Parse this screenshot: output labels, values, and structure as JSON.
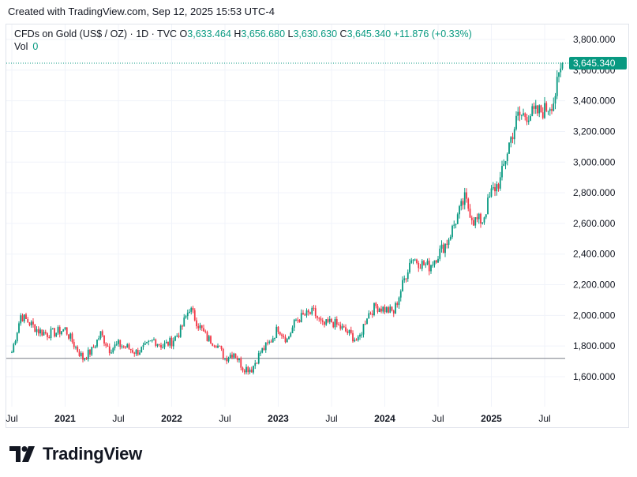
{
  "caption": "Created with TradingView.com, Sep 12, 2025 15:53 UTC-4",
  "legend": {
    "symbol": "CFDs on Gold (US$ / OZ) · 1D · TVC",
    "open_label": "O",
    "open": "3,633.464",
    "high_label": "H",
    "high": "3,656.680",
    "low_label": "L",
    "low": "3,630.630",
    "close_label": "C",
    "close": "3,645.340",
    "change": "+11.876 (+0.33%)",
    "vol_label": "Vol",
    "vol": "0"
  },
  "last_price_label": "3,645.340",
  "logo_text": "TradingView",
  "colors": {
    "up": "#089981",
    "down": "#f23645",
    "grid": "#f0f3fa",
    "line": "#089981"
  },
  "chart_data": {
    "type": "candlestick",
    "y_ticks": [
      "1,600.000",
      "1,800.000",
      "2,000.000",
      "2,200.000",
      "2,400.000",
      "2,600.000",
      "2,800.000",
      "3,000.000",
      "3,200.000",
      "3,400.000",
      "3,600.000",
      "3,800.000"
    ],
    "y_values": [
      1600,
      1800,
      2000,
      2200,
      2400,
      2600,
      2800,
      3000,
      3200,
      3400,
      3600,
      3800
    ],
    "x_ticks": [
      {
        "label": "Jul",
        "date": "2020-07",
        "bold": false
      },
      {
        "label": "2021",
        "date": "2021-01",
        "bold": true
      },
      {
        "label": "Jul",
        "date": "2021-07",
        "bold": false
      },
      {
        "label": "2022",
        "date": "2022-01",
        "bold": true
      },
      {
        "label": "Jul",
        "date": "2022-07",
        "bold": false
      },
      {
        "label": "2023",
        "date": "2023-01",
        "bold": true
      },
      {
        "label": "Jul",
        "date": "2023-07",
        "bold": false
      },
      {
        "label": "2024",
        "date": "2024-01",
        "bold": true
      },
      {
        "label": "Jul",
        "date": "2024-07",
        "bold": false
      },
      {
        "label": "2025",
        "date": "2025-01",
        "bold": true
      },
      {
        "label": "Jul",
        "date": "2025-07",
        "bold": false
      }
    ],
    "reference_line": 1720,
    "last_price": 3645.34,
    "closes": [
      {
        "date": "2020-07",
        "close": 1760
      },
      {
        "date": "2020-08",
        "close": 2000
      },
      {
        "date": "2020-09",
        "close": 1950
      },
      {
        "date": "2020-10",
        "close": 1900
      },
      {
        "date": "2020-11",
        "close": 1880
      },
      {
        "date": "2020-12",
        "close": 1890
      },
      {
        "date": "2021-01",
        "close": 1910
      },
      {
        "date": "2021-02",
        "close": 1810
      },
      {
        "date": "2021-03",
        "close": 1720
      },
      {
        "date": "2021-04",
        "close": 1770
      },
      {
        "date": "2021-05",
        "close": 1880
      },
      {
        "date": "2021-06",
        "close": 1780
      },
      {
        "date": "2021-07",
        "close": 1810
      },
      {
        "date": "2021-08",
        "close": 1790
      },
      {
        "date": "2021-09",
        "close": 1760
      },
      {
        "date": "2021-10",
        "close": 1790
      },
      {
        "date": "2021-11",
        "close": 1840
      },
      {
        "date": "2021-12",
        "close": 1800
      },
      {
        "date": "2022-01",
        "close": 1830
      },
      {
        "date": "2022-02",
        "close": 1900
      },
      {
        "date": "2022-03",
        "close": 2050
      },
      {
        "date": "2022-04",
        "close": 1940
      },
      {
        "date": "2022-05",
        "close": 1850
      },
      {
        "date": "2022-06",
        "close": 1820
      },
      {
        "date": "2022-07",
        "close": 1720
      },
      {
        "date": "2022-08",
        "close": 1760
      },
      {
        "date": "2022-09",
        "close": 1660
      },
      {
        "date": "2022-10",
        "close": 1650
      },
      {
        "date": "2022-11",
        "close": 1760
      },
      {
        "date": "2022-12",
        "close": 1820
      },
      {
        "date": "2023-01",
        "close": 1920
      },
      {
        "date": "2023-02",
        "close": 1840
      },
      {
        "date": "2023-03",
        "close": 1970
      },
      {
        "date": "2023-04",
        "close": 2000
      },
      {
        "date": "2023-05",
        "close": 2020
      },
      {
        "date": "2023-06",
        "close": 1930
      },
      {
        "date": "2023-07",
        "close": 1960
      },
      {
        "date": "2023-08",
        "close": 1920
      },
      {
        "date": "2023-09",
        "close": 1880
      },
      {
        "date": "2023-10",
        "close": 1830
      },
      {
        "date": "2023-11",
        "close": 2000
      },
      {
        "date": "2023-12",
        "close": 2060
      },
      {
        "date": "2024-01",
        "close": 2040
      },
      {
        "date": "2024-02",
        "close": 2020
      },
      {
        "date": "2024-03",
        "close": 2200
      },
      {
        "date": "2024-04",
        "close": 2380
      },
      {
        "date": "2024-05",
        "close": 2340
      },
      {
        "date": "2024-06",
        "close": 2320
      },
      {
        "date": "2024-07",
        "close": 2400
      },
      {
        "date": "2024-08",
        "close": 2480
      },
      {
        "date": "2024-09",
        "close": 2620
      },
      {
        "date": "2024-10",
        "close": 2760
      },
      {
        "date": "2024-11",
        "close": 2620
      },
      {
        "date": "2024-12",
        "close": 2620
      },
      {
        "date": "2025-01",
        "close": 2800
      },
      {
        "date": "2025-02",
        "close": 2880
      },
      {
        "date": "2025-03",
        "close": 3120
      },
      {
        "date": "2025-04",
        "close": 3300
      },
      {
        "date": "2025-05",
        "close": 3310
      },
      {
        "date": "2025-06",
        "close": 3320
      },
      {
        "date": "2025-07",
        "close": 3340
      },
      {
        "date": "2025-08",
        "close": 3400
      },
      {
        "date": "2025-09",
        "close": 3645.34
      }
    ]
  }
}
